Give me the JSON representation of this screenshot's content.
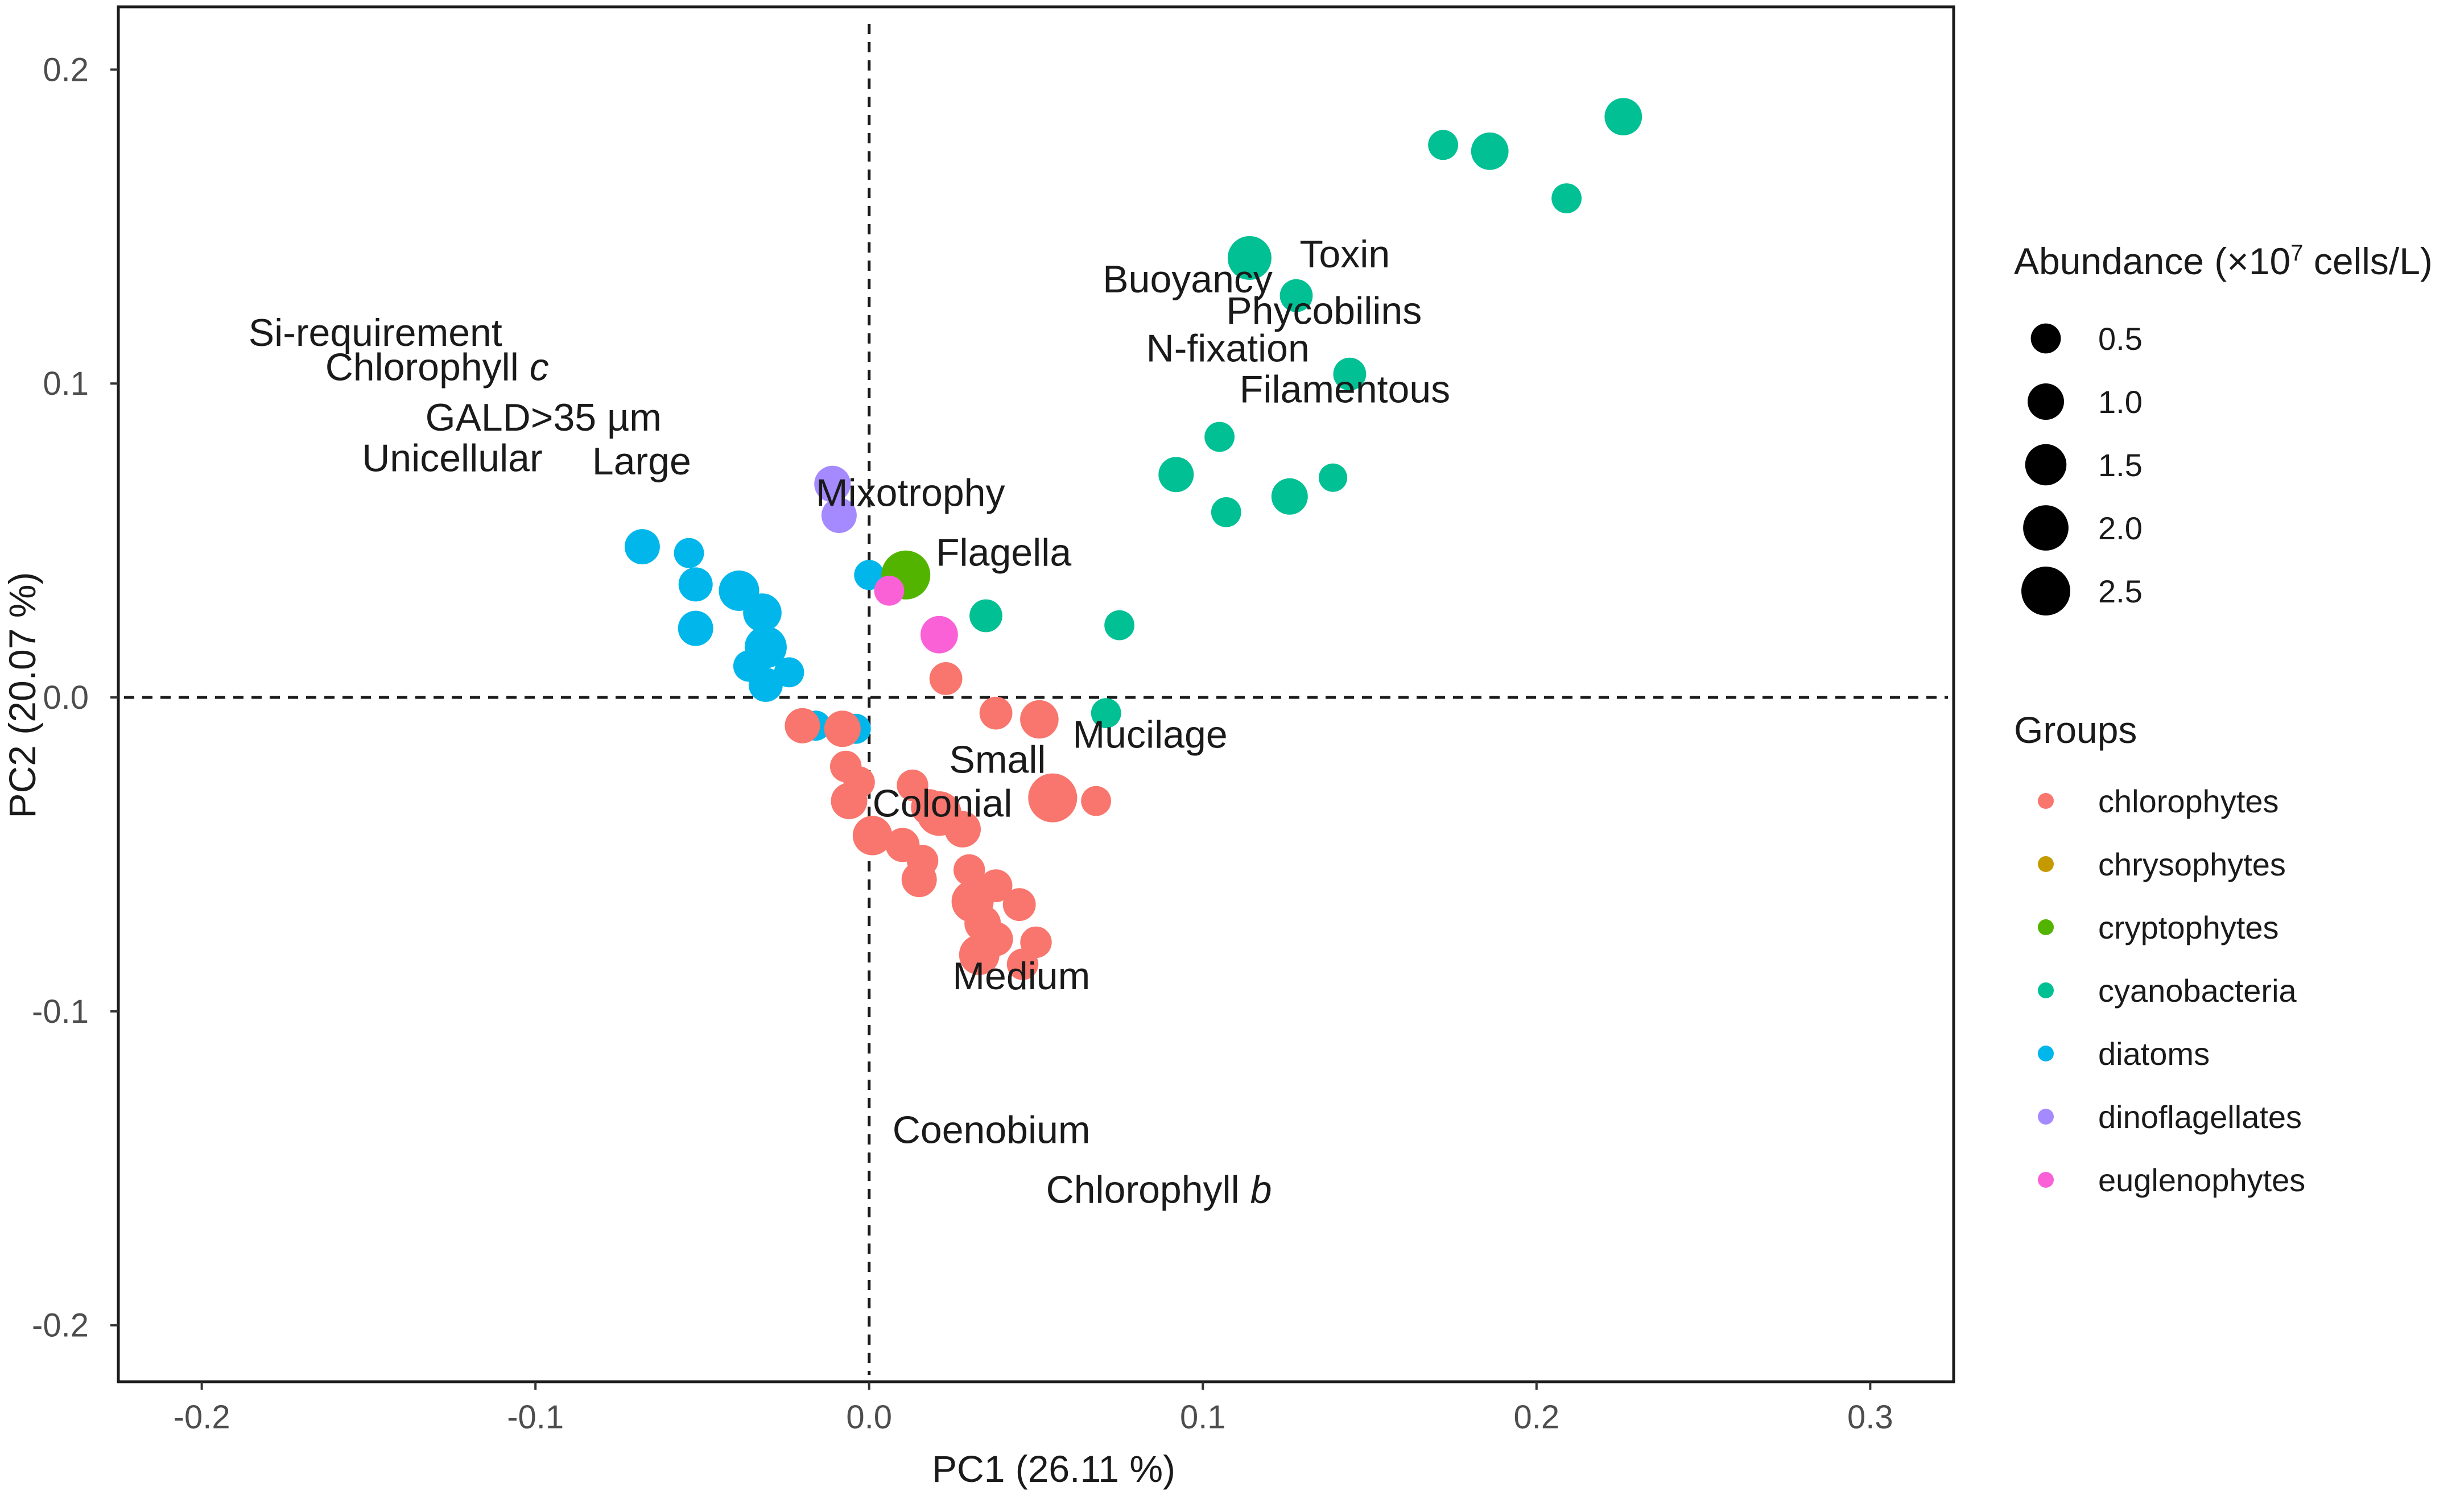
{
  "chart_data": {
    "type": "scatter",
    "title": "",
    "xlabel": "PC1 (26.11 %)",
    "ylabel": "PC2 (20.07 %)",
    "xlim": [
      -0.225,
      0.325
    ],
    "ylim": [
      -0.218,
      0.22
    ],
    "x_ticks": [
      -0.2,
      -0.1,
      0.0,
      0.1,
      0.2,
      0.3
    ],
    "x_tick_labels": [
      "-0.2",
      "-0.1",
      "0.0",
      "0.1",
      "0.2",
      "0.3"
    ],
    "y_ticks": [
      -0.2,
      -0.1,
      0.0,
      0.1,
      0.2
    ],
    "y_tick_labels": [
      "-0.2",
      "-0.1",
      "0.0",
      "0.1",
      "0.2"
    ],
    "reference_lines": {
      "x": 0.0,
      "y": 0.0,
      "style": "dashed"
    },
    "size_legend": {
      "title": "Abundance (×10",
      "title_sup": "7",
      "title_suffix": " cells/L)",
      "entries": [
        {
          "label": "0.5",
          "value": 0.5
        },
        {
          "label": "1.0",
          "value": 1.0
        },
        {
          "label": "1.5",
          "value": 1.5
        },
        {
          "label": "2.0",
          "value": 2.0
        },
        {
          "label": "2.5",
          "value": 2.5
        }
      ]
    },
    "groups_legend": {
      "title": "Groups",
      "entries": [
        {
          "label": "chlorophytes",
          "color": "#F8766D"
        },
        {
          "label": "chrysophytes",
          "color": "#C49A00"
        },
        {
          "label": "cryptophytes",
          "color": "#53B400"
        },
        {
          "label": "cyanobacteria",
          "color": "#00C094"
        },
        {
          "label": "diatoms",
          "color": "#00B6EB"
        },
        {
          "label": "dinoflagellates",
          "color": "#A58AFF"
        },
        {
          "label": "euglenophytes",
          "color": "#FB61D7"
        }
      ]
    },
    "trait_labels": [
      {
        "text": "Si-requirement",
        "x": -0.186,
        "y": 0.112
      },
      {
        "text": "Chlorophyll ",
        "italic": "c",
        "x": -0.163,
        "y": 0.101
      },
      {
        "text": "GALD>35 µm",
        "x": -0.133,
        "y": 0.085
      },
      {
        "text": "Unicellular",
        "x": -0.152,
        "y": 0.072
      },
      {
        "text": "Large",
        "x": -0.083,
        "y": 0.071
      },
      {
        "text": "Mixotrophy",
        "x": -0.016,
        "y": 0.061
      },
      {
        "text": "Flagella",
        "x": 0.02,
        "y": 0.042
      },
      {
        "text": "Buoyancy",
        "x": 0.07,
        "y": 0.129
      },
      {
        "text": "Toxin",
        "x": 0.129,
        "y": 0.137
      },
      {
        "text": "Phycobilins",
        "x": 0.107,
        "y": 0.119
      },
      {
        "text": "N-fixation",
        "x": 0.083,
        "y": 0.107
      },
      {
        "text": "Filamentous",
        "x": 0.111,
        "y": 0.094
      },
      {
        "text": "Mucilage",
        "x": 0.061,
        "y": -0.016
      },
      {
        "text": "Small",
        "x": 0.024,
        "y": -0.024
      },
      {
        "text": "Colonial",
        "x": 0.001,
        "y": -0.038
      },
      {
        "text": "Medium",
        "x": 0.025,
        "y": -0.093
      },
      {
        "text": "Coenobium",
        "x": 0.007,
        "y": -0.142
      },
      {
        "text": "Chlorophyll ",
        "italic": "b",
        "x": 0.053,
        "y": -0.161
      }
    ],
    "series": [
      {
        "name": "cyanobacteria",
        "points": [
          {
            "x": 0.226,
            "y": 0.185,
            "size": 1.1
          },
          {
            "x": 0.186,
            "y": 0.174,
            "size": 1.1
          },
          {
            "x": 0.172,
            "y": 0.176,
            "size": 0.5
          },
          {
            "x": 0.209,
            "y": 0.159,
            "size": 0.5
          },
          {
            "x": 0.114,
            "y": 0.14,
            "size": 1.8
          },
          {
            "x": 0.128,
            "y": 0.128,
            "size": 0.7
          },
          {
            "x": 0.144,
            "y": 0.103,
            "size": 0.7
          },
          {
            "x": 0.105,
            "y": 0.083,
            "size": 0.5
          },
          {
            "x": 0.092,
            "y": 0.071,
            "size": 0.9
          },
          {
            "x": 0.126,
            "y": 0.064,
            "size": 1.0
          },
          {
            "x": 0.139,
            "y": 0.07,
            "size": 0.4
          },
          {
            "x": 0.107,
            "y": 0.059,
            "size": 0.5
          },
          {
            "x": 0.035,
            "y": 0.026,
            "size": 0.7
          },
          {
            "x": 0.075,
            "y": 0.023,
            "size": 0.5
          },
          {
            "x": 0.071,
            "y": -0.005,
            "size": 0.5
          }
        ]
      },
      {
        "name": "diatoms",
        "points": [
          {
            "x": -0.068,
            "y": 0.048,
            "size": 0.9
          },
          {
            "x": -0.054,
            "y": 0.046,
            "size": 0.5
          },
          {
            "x": -0.052,
            "y": 0.036,
            "size": 0.8
          },
          {
            "x": -0.039,
            "y": 0.034,
            "size": 1.4
          },
          {
            "x": -0.032,
            "y": 0.027,
            "size": 1.2
          },
          {
            "x": -0.052,
            "y": 0.022,
            "size": 0.9
          },
          {
            "x": -0.031,
            "y": 0.016,
            "size": 1.6
          },
          {
            "x": -0.036,
            "y": 0.01,
            "size": 0.6
          },
          {
            "x": -0.031,
            "y": 0.004,
            "size": 0.8
          },
          {
            "x": -0.024,
            "y": 0.008,
            "size": 0.5
          },
          {
            "x": -0.016,
            "y": -0.009,
            "size": 0.5
          },
          {
            "x": -0.004,
            "y": -0.01,
            "size": 0.5
          },
          {
            "x": 0.0,
            "y": 0.039,
            "size": 0.5
          }
        ]
      },
      {
        "name": "dinoflagellates",
        "points": [
          {
            "x": -0.011,
            "y": 0.068,
            "size": 1.0
          },
          {
            "x": -0.009,
            "y": 0.058,
            "size": 0.9
          }
        ]
      },
      {
        "name": "cryptophytes",
        "points": [
          {
            "x": 0.011,
            "y": 0.039,
            "size": 2.5
          }
        ]
      },
      {
        "name": "euglenophytes",
        "points": [
          {
            "x": 0.006,
            "y": 0.034,
            "size": 0.5
          },
          {
            "x": 0.021,
            "y": 0.02,
            "size": 1.1
          }
        ]
      },
      {
        "name": "chlorophytes",
        "points": [
          {
            "x": 0.023,
            "y": 0.006,
            "size": 0.7
          },
          {
            "x": 0.038,
            "y": -0.005,
            "size": 0.7
          },
          {
            "x": 0.051,
            "y": -0.007,
            "size": 1.2
          },
          {
            "x": 0.055,
            "y": -0.032,
            "size": 2.5
          },
          {
            "x": 0.068,
            "y": -0.033,
            "size": 0.5
          },
          {
            "x": -0.02,
            "y": -0.009,
            "size": 0.9
          },
          {
            "x": -0.008,
            "y": -0.01,
            "size": 1.0
          },
          {
            "x": -0.007,
            "y": -0.022,
            "size": 0.6
          },
          {
            "x": -0.003,
            "y": -0.027,
            "size": 0.6
          },
          {
            "x": -0.006,
            "y": -0.033,
            "size": 1.0
          },
          {
            "x": 0.013,
            "y": -0.028,
            "size": 0.6
          },
          {
            "x": 0.018,
            "y": -0.035,
            "size": 1.0
          },
          {
            "x": 0.021,
            "y": -0.037,
            "size": 1.9
          },
          {
            "x": 0.028,
            "y": -0.042,
            "size": 1.0
          },
          {
            "x": 0.001,
            "y": -0.044,
            "size": 1.3
          },
          {
            "x": 0.01,
            "y": -0.047,
            "size": 0.8
          },
          {
            "x": 0.016,
            "y": -0.052,
            "size": 0.6
          },
          {
            "x": 0.015,
            "y": -0.058,
            "size": 0.9
          },
          {
            "x": 0.03,
            "y": -0.055,
            "size": 0.6
          },
          {
            "x": 0.038,
            "y": -0.06,
            "size": 0.7
          },
          {
            "x": 0.031,
            "y": -0.065,
            "size": 1.6
          },
          {
            "x": 0.045,
            "y": -0.066,
            "size": 0.7
          },
          {
            "x": 0.034,
            "y": -0.072,
            "size": 1.0
          },
          {
            "x": 0.038,
            "y": -0.077,
            "size": 0.8
          },
          {
            "x": 0.05,
            "y": -0.078,
            "size": 0.6
          },
          {
            "x": 0.033,
            "y": -0.082,
            "size": 1.4
          },
          {
            "x": 0.046,
            "y": -0.085,
            "size": 0.6
          }
        ]
      }
    ]
  }
}
